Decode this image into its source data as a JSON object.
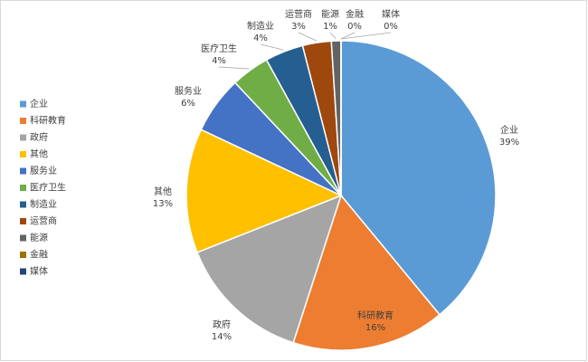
{
  "chart_data": {
    "type": "pie",
    "categories": [
      "企业",
      "科研教育",
      "政府",
      "其他",
      "服务业",
      "医疗卫生",
      "制造业",
      "运营商",
      "能源",
      "金融",
      "媒体"
    ],
    "values": [
      39,
      16,
      14,
      13,
      6,
      4,
      4,
      3,
      1,
      0,
      0
    ],
    "value_labels": [
      "39%",
      "16%",
      "14%",
      "13%",
      "6%",
      "4%",
      "4%",
      "3%",
      "1%",
      "0%",
      "0%"
    ],
    "colors": [
      "#5b9bd5",
      "#ed7d31",
      "#a5a5a5",
      "#ffc000",
      "#4472c4",
      "#70ad47",
      "#255e91",
      "#9e480e",
      "#636363",
      "#997300",
      "#264478"
    ],
    "legend": "left"
  }
}
